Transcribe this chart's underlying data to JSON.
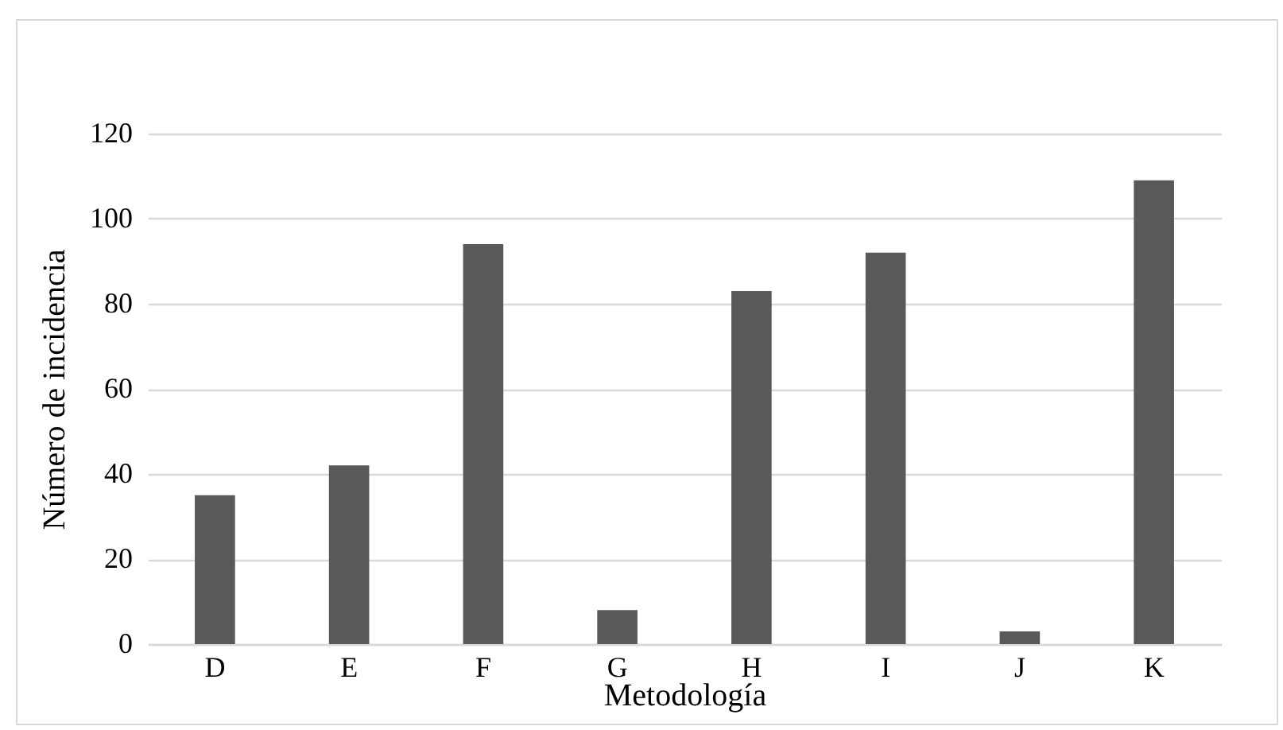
{
  "chart_data": {
    "type": "bar",
    "xlabel": "Metodología",
    "ylabel": "Número de incidencia",
    "categories": [
      "D",
      "E",
      "F",
      "G",
      "H",
      "I",
      "J",
      "K"
    ],
    "values": [
      35,
      42,
      94,
      8,
      83,
      92,
      3,
      109
    ],
    "color": "#595959",
    "ylim": [
      0,
      120
    ],
    "yticks": [
      0,
      20,
      40,
      60,
      80,
      100,
      120
    ],
    "grid": "y"
  }
}
